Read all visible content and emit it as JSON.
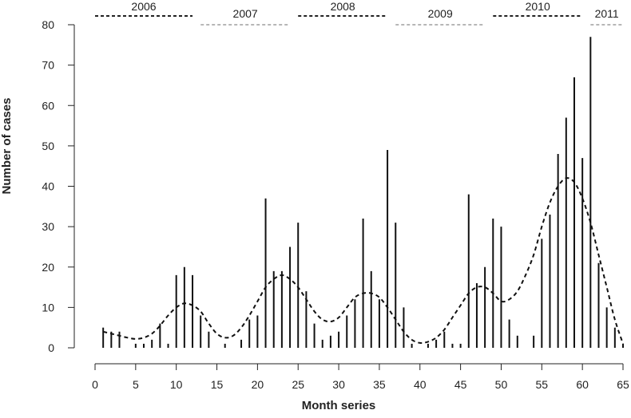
{
  "chart_data": {
    "type": "bar",
    "xlabel": "Month series",
    "ylabel": "Number of cases",
    "xlim": [
      0,
      65
    ],
    "ylim": [
      0,
      80
    ],
    "x_ticks": [
      0,
      5,
      10,
      15,
      20,
      25,
      30,
      35,
      40,
      45,
      50,
      55,
      60,
      65
    ],
    "y_ticks": [
      0,
      10,
      20,
      30,
      40,
      50,
      60,
      70,
      80
    ],
    "grid": false,
    "years": [
      {
        "label": "2006",
        "start": 0,
        "end": 12,
        "line": "dark"
      },
      {
        "label": "2007",
        "start": 13,
        "end": 24,
        "line": "light"
      },
      {
        "label": "2008",
        "start": 25,
        "end": 36,
        "line": "dark"
      },
      {
        "label": "2009",
        "start": 37,
        "end": 48,
        "line": "light"
      },
      {
        "label": "2010",
        "start": 49,
        "end": 60,
        "line": "dark"
      },
      {
        "label": "2011",
        "start": 61,
        "end": 65,
        "line": "light"
      }
    ],
    "series": [
      {
        "kind": "bars",
        "x": [
          1,
          2,
          3,
          4,
          5,
          6,
          7,
          8,
          9,
          10,
          11,
          12,
          13,
          14,
          15,
          16,
          17,
          18,
          19,
          20,
          21,
          22,
          23,
          24,
          25,
          26,
          27,
          28,
          29,
          30,
          31,
          32,
          33,
          34,
          35,
          36,
          37,
          38,
          39,
          40,
          41,
          42,
          43,
          44,
          45,
          46,
          47,
          48,
          49,
          50,
          51,
          52,
          53,
          54,
          55,
          56,
          57,
          58,
          59,
          60,
          61,
          62,
          63,
          64,
          65
        ],
        "values": [
          5,
          4,
          4,
          0,
          1,
          1,
          2,
          6,
          1,
          18,
          20,
          18,
          8,
          4,
          0,
          1,
          0,
          2,
          7,
          8,
          37,
          19,
          19,
          25,
          31,
          14,
          6,
          2,
          3,
          4,
          8,
          12,
          32,
          19,
          12,
          49,
          31,
          10,
          1,
          0,
          1,
          2,
          4,
          1,
          1,
          38,
          16,
          20,
          32,
          30,
          7,
          3,
          0,
          3,
          27,
          33,
          48,
          57,
          67,
          47,
          77,
          21,
          10,
          5,
          1
        ]
      },
      {
        "kind": "smooth",
        "style": "dashed",
        "x": [
          1,
          2,
          3,
          4,
          5,
          6,
          7,
          8,
          9,
          10,
          11,
          12,
          13,
          14,
          15,
          16,
          17,
          18,
          19,
          20,
          21,
          22,
          23,
          24,
          25,
          26,
          27,
          28,
          29,
          30,
          31,
          32,
          33,
          34,
          35,
          36,
          37,
          38,
          39,
          40,
          41,
          42,
          43,
          44,
          45,
          46,
          47,
          48,
          49,
          50,
          51,
          52,
          53,
          54,
          55,
          56,
          57,
          58,
          59,
          60,
          61,
          62,
          63,
          64,
          65
        ],
        "values": [
          4,
          3.5,
          3,
          2.5,
          2.2,
          2.5,
          3.5,
          5.5,
          8,
          10,
          11,
          10.5,
          9,
          6,
          3.5,
          2.5,
          3,
          5,
          8,
          11.5,
          15,
          17,
          18,
          17,
          15,
          12,
          9,
          7,
          6.5,
          7.5,
          10,
          12.5,
          13.5,
          13.5,
          12.5,
          10,
          7,
          4,
          2,
          1.2,
          1.5,
          2.5,
          4.5,
          7.5,
          10.5,
          13.5,
          15,
          15,
          13.5,
          11.5,
          12,
          14,
          18,
          23,
          30,
          36,
          40,
          42,
          41,
          37,
          31,
          23,
          15,
          7,
          1
        ]
      }
    ]
  }
}
